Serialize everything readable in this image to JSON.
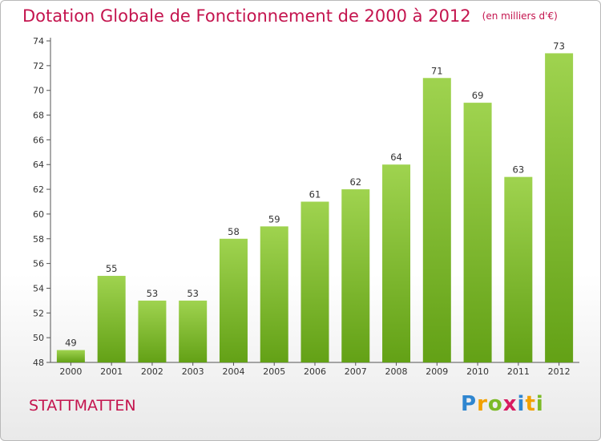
{
  "title": "Dotation Globale de Fonctionnement de 2000 à 2012",
  "unit": "(en milliers d'€)",
  "commune": "STATTMATTEN",
  "logo": {
    "letters": [
      "P",
      "r",
      "o",
      "x",
      "i",
      "t",
      "i"
    ],
    "colors": [
      "#2f86d0",
      "#f2a100",
      "#7cba26",
      "#d81b60",
      "#2f86d0",
      "#f2a100",
      "#7cba26"
    ]
  },
  "colors": {
    "bar_top": "#9fd34f",
    "bar_bottom": "#63a116",
    "text_accent": "#c4144e"
  },
  "chart_data": {
    "type": "bar",
    "categories": [
      "2000",
      "2001",
      "2002",
      "2003",
      "2004",
      "2005",
      "2006",
      "2007",
      "2008",
      "2009",
      "2010",
      "2011",
      "2012"
    ],
    "values": [
      49,
      55,
      53,
      53,
      58,
      59,
      61,
      62,
      64,
      71,
      69,
      63,
      73
    ],
    "ylim": [
      48,
      74
    ],
    "yticks": [
      48,
      50,
      52,
      54,
      56,
      58,
      60,
      62,
      64,
      66,
      68,
      70,
      72,
      74
    ],
    "grid": false,
    "title": "Dotation Globale de Fonctionnement de 2000 à 2012",
    "xlabel": "",
    "ylabel": ""
  }
}
